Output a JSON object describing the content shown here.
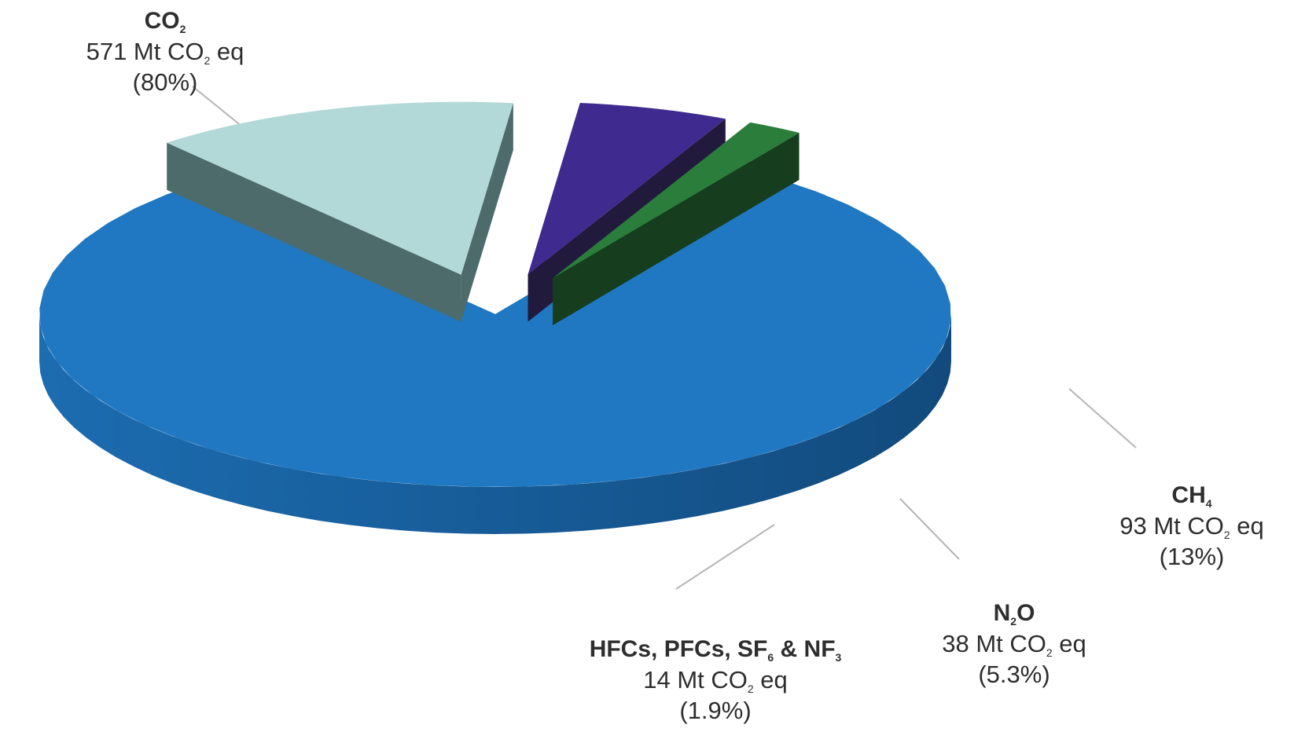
{
  "chart_data": {
    "type": "pie",
    "style": "3d-exploded",
    "units": "Mt CO2 eq",
    "slices": [
      {
        "name": "CO2",
        "value": 571,
        "percent": "80%",
        "value_text": "571 Mt CO",
        "unit_tail": "eq",
        "pct_text": "(80%)",
        "color": "#1F78C1"
      },
      {
        "name": "CH4",
        "value": 93,
        "percent": "13%",
        "value_text": "93 Mt CO",
        "unit_tail": "eq",
        "pct_text": "(13%)",
        "color": "#B2D8D8"
      },
      {
        "name": "N2O",
        "value": 38,
        "percent": "5.3%",
        "value_text": "38 Mt CO",
        "unit_tail": "eq",
        "pct_text": "(5.3%)",
        "color": "#3F2A90"
      },
      {
        "name": "HFCs, PFCs, SF6 & NF3",
        "value": 14,
        "percent": "1.9%",
        "value_text": "14 Mt CO",
        "unit_tail": "eq",
        "pct_text": "(1.9%)",
        "color": "#2B7D3C"
      }
    ],
    "label_parts": {
      "co2": {
        "name_a": "CO",
        "name_sub": "2",
        "name_b": ""
      },
      "ch4": {
        "name_a": "CH",
        "name_sub": "4",
        "name_b": ""
      },
      "n2o": {
        "name_a": "N",
        "name_sub": "2",
        "name_b": "O"
      },
      "fgas": {
        "name_a": "HFCs, PFCs, SF",
        "name_sub": "6",
        "name_b": " & NF",
        "name_sub2": "3"
      }
    },
    "subscript_2": "2"
  }
}
